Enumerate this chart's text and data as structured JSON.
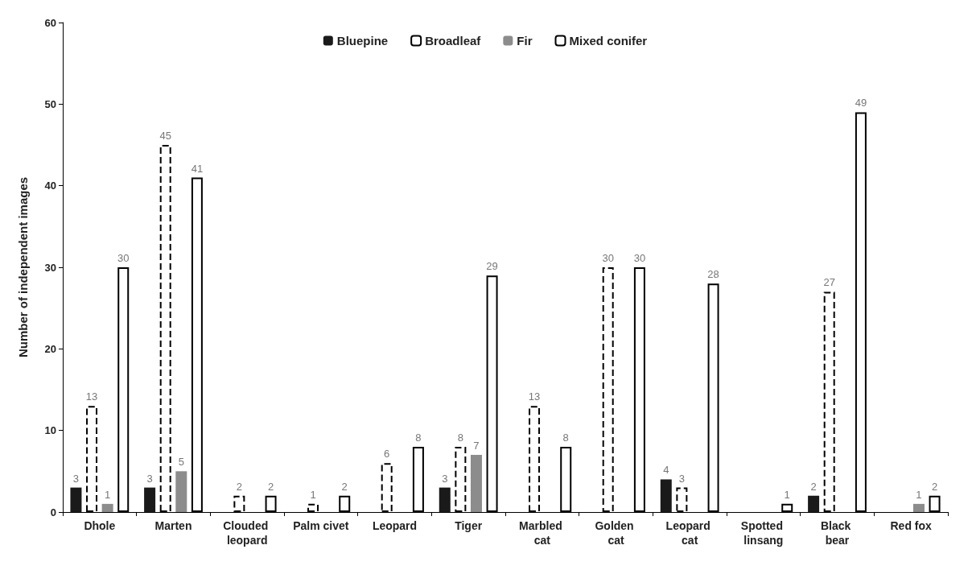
{
  "chart_data": {
    "type": "bar",
    "ylabel": "Number of independent images",
    "categories": [
      "Dhole",
      "Marten",
      "Clouded leopard",
      "Palm civet",
      "Leopard",
      "Tiger",
      "Marbled cat",
      "Golden cat",
      "Leopard cat",
      "Spotted linsang",
      "Black bear",
      "Red fox"
    ],
    "series": [
      {
        "name": "Bluepine",
        "color": "#1a1a1a",
        "values": [
          3,
          3,
          null,
          null,
          null,
          3,
          null,
          null,
          4,
          null,
          2,
          null
        ]
      },
      {
        "name": "Broadleaf",
        "color": "#ffffff",
        "line_style": "dashed",
        "values": [
          13,
          45,
          2,
          1,
          6,
          8,
          13,
          30,
          3,
          null,
          27,
          null
        ]
      },
      {
        "name": "Fir",
        "color": "#8c8c8c",
        "values": [
          1,
          5,
          null,
          null,
          null,
          7,
          null,
          null,
          null,
          null,
          null,
          1
        ]
      },
      {
        "name": "Mixed conifer",
        "color": "#ffffff",
        "line_style": "solid",
        "values": [
          30,
          41,
          2,
          2,
          8,
          29,
          8,
          30,
          28,
          1,
          49,
          2
        ]
      }
    ],
    "ylim": [
      0,
      60
    ],
    "yticks": [
      0,
      10,
      20,
      30,
      40,
      50,
      60
    ],
    "grid": false,
    "legend": "top",
    "data_labels": true
  }
}
